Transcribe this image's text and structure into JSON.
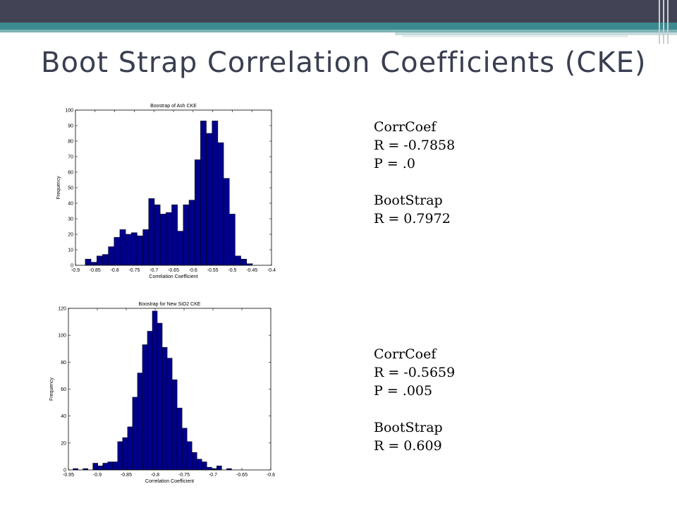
{
  "slide": {
    "title": "Boot Strap Correlation Coefficients (CKE)"
  },
  "colors": {
    "bar": "#00008b",
    "bar_edge": "#000000",
    "topbar": "#424456",
    "teal": "#3a8a8f"
  },
  "stats": [
    {
      "heading": "CorrCoef",
      "r": "R = -0.7858",
      "p": "P = .0",
      "boot_heading": "BootStrap",
      "boot_r": "R = 0.7972"
    },
    {
      "heading": "CorrCoef",
      "r": "R = -0.5659",
      "p": "P = .005",
      "boot_heading": "BootStrap",
      "boot_r": "R = 0.609"
    }
  ],
  "chart_data": [
    {
      "type": "bar",
      "title": "Boostrap of Ash CKE",
      "xlabel": "Correlation Coefficient",
      "ylabel": "Frequency",
      "xlim": [
        -0.9,
        -0.4
      ],
      "ylim": [
        0,
        100
      ],
      "xticks": [
        -0.9,
        -0.85,
        -0.8,
        -0.75,
        -0.7,
        -0.65,
        -0.6,
        -0.55,
        -0.5,
        -0.45,
        -0.4
      ],
      "xtick_labels": [
        "-0.9",
        "-0.85",
        "-0.8",
        "-0.75",
        "-0.7",
        "-0.65",
        "-0.6",
        "-0.55",
        "-0.5",
        "-0.45",
        "-0.4"
      ],
      "yticks": [
        0,
        10,
        20,
        30,
        40,
        50,
        60,
        70,
        80,
        90,
        100
      ],
      "ytick_labels": [
        "0",
        "10",
        "20",
        "30",
        "40",
        "50",
        "60",
        "70",
        "80",
        "90",
        "100"
      ],
      "bin_start": -0.875,
      "bin_width": 0.0147,
      "values": [
        4,
        2,
        6,
        7,
        12,
        18,
        23,
        20,
        21,
        19,
        23,
        43,
        39,
        33,
        34,
        39,
        22,
        39,
        42,
        68,
        93,
        85,
        93,
        79,
        56,
        33,
        6,
        4,
        1
      ]
    },
    {
      "type": "bar",
      "title": "Boostrap for New SiO2 CKE",
      "xlabel": "Correlation Coefficient",
      "ylabel": "Frequency",
      "xlim": [
        -0.95,
        -0.6
      ],
      "ylim": [
        0,
        120
      ],
      "xticks": [
        -0.95,
        -0.9,
        -0.85,
        -0.8,
        -0.75,
        -0.7,
        -0.65,
        -0.6
      ],
      "xtick_labels": [
        "-0.95",
        "-0.9",
        "-0.85",
        "-0.8",
        "-0.75",
        "-0.7",
        "-0.65",
        "-0.6"
      ],
      "yticks": [
        0,
        20,
        40,
        60,
        80,
        100,
        120
      ],
      "ytick_labels": [
        "0",
        "20",
        "40",
        "60",
        "80",
        "100",
        "120"
      ],
      "bin_start": -0.942,
      "bin_width": 0.00857,
      "values": [
        1,
        0,
        1,
        0,
        5,
        3,
        5,
        6,
        6,
        21,
        24,
        32,
        54,
        72,
        93,
        103,
        118,
        109,
        91,
        83,
        67,
        46,
        31,
        21,
        13,
        8,
        6,
        2,
        1,
        3,
        0,
        1
      ]
    }
  ]
}
